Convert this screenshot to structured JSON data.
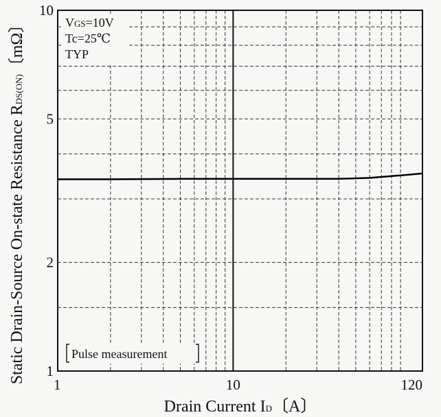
{
  "chart_data": {
    "type": "line",
    "xscale": "log",
    "yscale": "log",
    "xlim": [
      1,
      120
    ],
    "ylim": [
      1,
      10
    ],
    "x_ticks": [
      {
        "value": 1,
        "label": "1"
      },
      {
        "value": 10,
        "label": "10"
      },
      {
        "value": 120,
        "label": "120"
      }
    ],
    "y_ticks": [
      {
        "value": 1,
        "label": "1"
      },
      {
        "value": 2,
        "label": "2"
      },
      {
        "value": 5,
        "label": "5"
      },
      {
        "value": 10,
        "label": "10"
      }
    ],
    "x_minor_grid": [
      2,
      3,
      4,
      5,
      6,
      7,
      8,
      9,
      20,
      30,
      40,
      50,
      60,
      70,
      80,
      90
    ],
    "y_minor_grid": [
      1.5,
      3,
      4,
      6,
      7,
      8,
      9
    ],
    "grid": true,
    "grid_style": "dashed",
    "xlabel": {
      "main": "Drain Current ",
      "symbol": "I",
      "subscript": "D",
      "unit": "〔A〕"
    },
    "ylabel": {
      "main": "Static Drain-Source On-state Resistance ",
      "symbol": "R",
      "subscript": "DS(ON)",
      "unit": "〔mΩ〕"
    },
    "annotations": {
      "vgs": {
        "symbol": "V",
        "subscript": "GS",
        "value": "=10V"
      },
      "tc": "Tc=25℃",
      "typ": "TYP",
      "pulse": "Pulse measurement"
    },
    "series": [
      {
        "x": [
          1,
          2,
          5,
          10,
          20,
          40,
          60,
          80,
          100,
          120
        ],
        "y": [
          3.4,
          3.4,
          3.41,
          3.41,
          3.41,
          3.41,
          3.43,
          3.47,
          3.5,
          3.53
        ]
      }
    ],
    "line_color": "#000000"
  }
}
